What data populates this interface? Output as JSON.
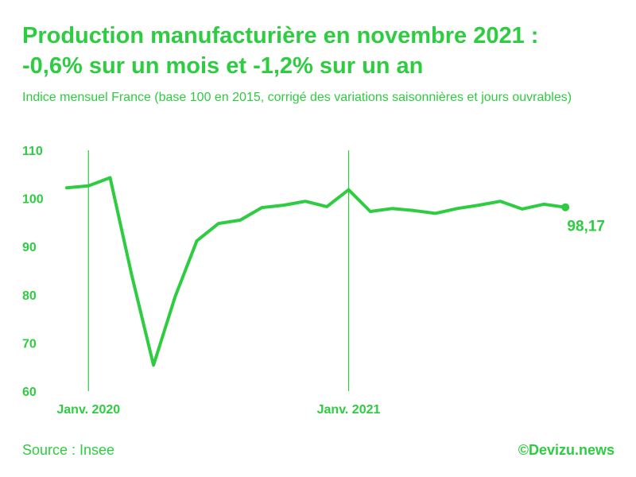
{
  "header": {
    "title_line1": "Production manufacturière en novembre 2021 :",
    "title_line2": "-0,6% sur un mois et -1,2% sur un an",
    "subtitle": "Indice mensuel France (base 100 en 2015, corrigé des variations saisonnières et jours ouvrables)"
  },
  "footer": {
    "source": "Source : Insee",
    "credit": "©Devizu.news"
  },
  "colors": {
    "accent": "#2ecc40"
  },
  "chart_data": {
    "type": "line",
    "x": [
      "2019-12",
      "2020-01",
      "2020-02",
      "2020-03",
      "2020-04",
      "2020-05",
      "2020-06",
      "2020-07",
      "2020-08",
      "2020-09",
      "2020-10",
      "2020-11",
      "2020-12",
      "2021-01",
      "2021-02",
      "2021-03",
      "2021-04",
      "2021-05",
      "2021-06",
      "2021-07",
      "2021-08",
      "2021-09",
      "2021-10",
      "2021-11"
    ],
    "series": [
      {
        "values": [
          102.2,
          102.6,
          104.3,
          84.0,
          65.4,
          79.6,
          91.2,
          94.8,
          95.5,
          98.1,
          98.6,
          99.4,
          98.3,
          101.8,
          97.3,
          97.9,
          97.5,
          96.9,
          97.9,
          98.6,
          99.4,
          97.8,
          98.8,
          98.17
        ]
      }
    ],
    "yticks": [
      60,
      70,
      80,
      90,
      100,
      110
    ],
    "ytick_labels": [
      "60",
      "70",
      "80",
      "90",
      "100",
      "110"
    ],
    "ylim": [
      60,
      110
    ],
    "xtick_labels": [
      {
        "x": "2020-01",
        "label": "Janv. 2020"
      },
      {
        "x": "2021-01",
        "label": "Janv. 2021"
      }
    ],
    "end_value_label": "98,17",
    "grid": false,
    "vertical_markers": [
      "2020-01",
      "2021-01"
    ]
  }
}
